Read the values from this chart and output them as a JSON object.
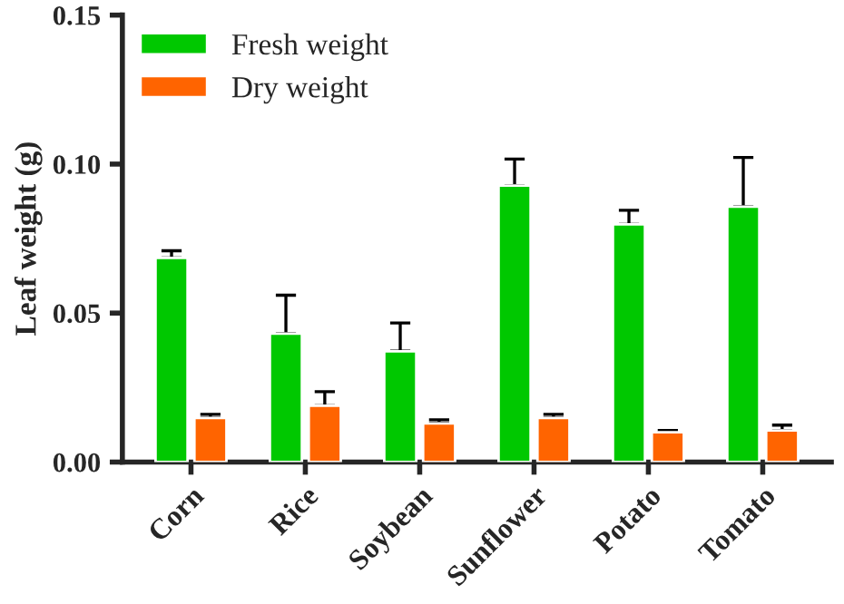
{
  "chart_data": {
    "type": "bar",
    "ylabel": "Leaf weight (g)",
    "categories": [
      "Corn",
      "Rice",
      "Soybean",
      "Sunflower",
      "Potato",
      "Tomato"
    ],
    "series": [
      {
        "name": "Fresh weight",
        "color": "#00c800",
        "values": [
          0.0685,
          0.0431,
          0.0372,
          0.0928,
          0.0798,
          0.0857
        ],
        "errors": [
          [
            0.0685,
            0.0709
          ],
          [
            0.0431,
            0.056
          ],
          [
            0.0372,
            0.0467
          ],
          [
            0.0928,
            0.1017
          ],
          [
            0.0798,
            0.0845
          ],
          [
            0.0857,
            0.1022
          ]
        ]
      },
      {
        "name": "Dry weight",
        "color": "#ff6400",
        "values": [
          0.0148,
          0.0189,
          0.013,
          0.0148,
          0.01,
          0.0106
        ],
        "errors": [
          [
            0.0148,
            0.016
          ],
          [
            0.0189,
            0.0236
          ],
          [
            0.013,
            0.0142
          ],
          [
            0.0148,
            0.016
          ],
          [
            0.01,
            0.0106
          ],
          [
            0.0106,
            0.0124
          ]
        ]
      }
    ],
    "ylim": [
      0,
      0.15
    ],
    "yticks": [
      {
        "value": 0,
        "label": "0.00"
      },
      {
        "value": 0.05,
        "label": "0.05"
      },
      {
        "value": 0.1,
        "label": "0.10"
      },
      {
        "value": 0.15,
        "label": "0.15"
      }
    ],
    "grid": false,
    "legend": "top left"
  }
}
